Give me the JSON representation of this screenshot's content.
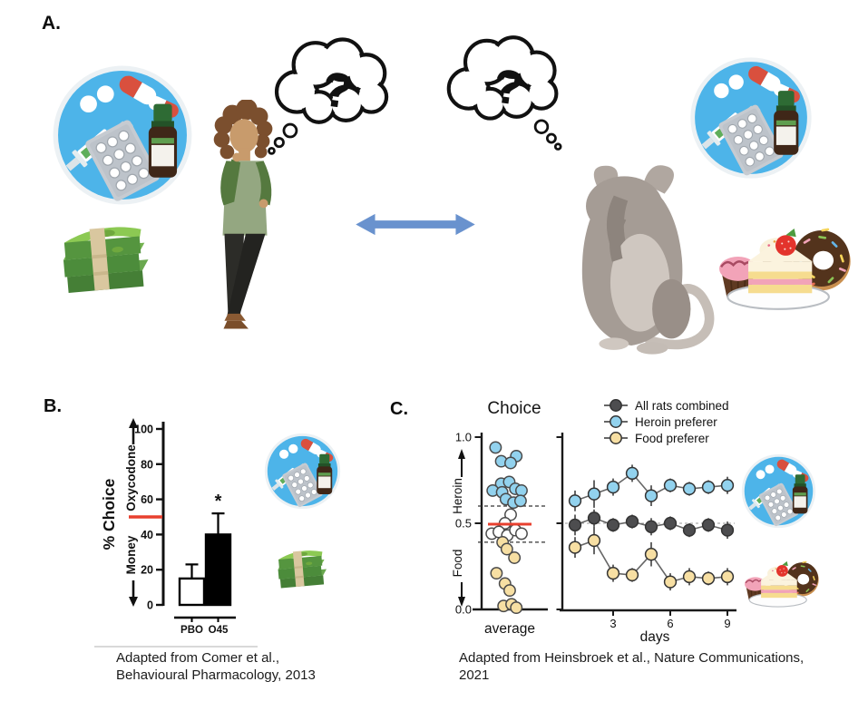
{
  "panels": {
    "a": {
      "label": "A.",
      "thought_symbol": "?"
    },
    "b": {
      "label": "B.",
      "caption_line1": "Adapted from Comer et al.,",
      "caption_line2": "Behavioural Pharmacology, 2013"
    },
    "c": {
      "label": "C.",
      "caption_line1": "Adapted from Heinsbroek et al., Nature Communications,",
      "caption_line2": "2021"
    }
  },
  "icons": {
    "drugs": "blue circle with pills, capsules, syringe, blister pack and medicine bottle",
    "money": "stack of green banknotes with band",
    "sweets": "cupcakes, chocolate donut and cake slice on plate",
    "person": "person thinking with hand on chin",
    "rat": "rat standing on hind legs",
    "thought-bubble": "cloud thought bubble with question mark",
    "double-arrow": "blue double-headed horizontal arrow"
  },
  "colors": {
    "drug_circle_blue": "#4DB4E9",
    "arrow_blue": "#6992CE",
    "reference_red": "#E8402F",
    "heroin_point": "#92D2EE",
    "food_point": "#F7DFA3",
    "all_rats_point": "#4D4D4F"
  },
  "chart_data": [
    {
      "id": "panel_b",
      "type": "bar",
      "title": "",
      "categories": [
        "PBO",
        "O45"
      ],
      "values": [
        15,
        40
      ],
      "errors_up": [
        8,
        12
      ],
      "significance": [
        "",
        "*"
      ],
      "bar_colors": [
        "#FFFFFF",
        "#000000"
      ],
      "ylabel": "% Choice",
      "axis_upper_label": "Oxycodone",
      "axis_lower_label": "Money",
      "yticks": [
        0,
        20,
        40,
        60,
        80,
        100
      ],
      "ylim": [
        0,
        100
      ],
      "reference_line": 50,
      "reference_color": "#E8402F"
    },
    {
      "id": "panel_c_scatter",
      "type": "scatter",
      "title": "Choice",
      "xlabel": "average",
      "ylim": [
        0,
        1
      ],
      "yticks": [
        1.0,
        0.5,
        0.0
      ],
      "axis_upper_label": "Heroin",
      "axis_lower_label": "Food",
      "reference_line": 0.5,
      "dashed_lines": [
        0.6,
        0.39
      ],
      "points": [
        {
          "x": 0.18,
          "y": 0.94,
          "g": "heroin"
        },
        {
          "x": 0.3,
          "y": 0.86,
          "g": "heroin"
        },
        {
          "x": 0.62,
          "y": 0.89,
          "g": "heroin"
        },
        {
          "x": 0.5,
          "y": 0.85,
          "g": "heroin"
        },
        {
          "x": 0.3,
          "y": 0.73,
          "g": "heroin"
        },
        {
          "x": 0.47,
          "y": 0.74,
          "g": "heroin"
        },
        {
          "x": 0.12,
          "y": 0.69,
          "g": "heroin"
        },
        {
          "x": 0.32,
          "y": 0.68,
          "g": "heroin"
        },
        {
          "x": 0.6,
          "y": 0.7,
          "g": "heroin"
        },
        {
          "x": 0.73,
          "y": 0.69,
          "g": "heroin"
        },
        {
          "x": 0.4,
          "y": 0.64,
          "g": "heroin"
        },
        {
          "x": 0.56,
          "y": 0.62,
          "g": "heroin"
        },
        {
          "x": 0.71,
          "y": 0.63,
          "g": "heroin"
        },
        {
          "x": 0.5,
          "y": 0.55,
          "g": "mid"
        },
        {
          "x": 0.38,
          "y": 0.5,
          "g": "mid"
        },
        {
          "x": 0.1,
          "y": 0.44,
          "g": "mid"
        },
        {
          "x": 0.25,
          "y": 0.45,
          "g": "mid"
        },
        {
          "x": 0.43,
          "y": 0.43,
          "g": "mid"
        },
        {
          "x": 0.6,
          "y": 0.46,
          "g": "mid"
        },
        {
          "x": 0.73,
          "y": 0.44,
          "g": "mid"
        },
        {
          "x": 0.33,
          "y": 0.39,
          "g": "food"
        },
        {
          "x": 0.42,
          "y": 0.35,
          "g": "food"
        },
        {
          "x": 0.58,
          "y": 0.3,
          "g": "food"
        },
        {
          "x": 0.2,
          "y": 0.21,
          "g": "food"
        },
        {
          "x": 0.38,
          "y": 0.15,
          "g": "food"
        },
        {
          "x": 0.48,
          "y": 0.11,
          "g": "food"
        },
        {
          "x": 0.35,
          "y": 0.02,
          "g": "food"
        },
        {
          "x": 0.52,
          "y": 0.03,
          "g": "food"
        },
        {
          "x": 0.62,
          "y": 0.01,
          "g": "food"
        }
      ]
    },
    {
      "id": "panel_c_lines",
      "type": "line",
      "xlabel": "days",
      "x": [
        1,
        2,
        3,
        4,
        5,
        6,
        7,
        8,
        9
      ],
      "xticks": [
        3,
        6,
        9
      ],
      "ylim": [
        0,
        1
      ],
      "dashed_line": 0.5,
      "series": [
        {
          "name": "All rats combined",
          "color": "#4D4D4F",
          "values": [
            0.49,
            0.53,
            0.49,
            0.51,
            0.48,
            0.5,
            0.46,
            0.49,
            0.46
          ],
          "errors": [
            0.06,
            0.05,
            0.04,
            0.04,
            0.05,
            0.04,
            0.04,
            0.04,
            0.05
          ]
        },
        {
          "name": "Heroin preferer",
          "color": "#92D2EE",
          "values": [
            0.63,
            0.67,
            0.71,
            0.79,
            0.66,
            0.72,
            0.7,
            0.71,
            0.72
          ],
          "errors": [
            0.06,
            0.08,
            0.05,
            0.05,
            0.06,
            0.04,
            0.04,
            0.04,
            0.05
          ]
        },
        {
          "name": "Food preferer",
          "color": "#F7DFA3",
          "values": [
            0.36,
            0.4,
            0.21,
            0.2,
            0.32,
            0.16,
            0.19,
            0.18,
            0.19
          ],
          "errors": [
            0.06,
            0.08,
            0.05,
            0.04,
            0.07,
            0.05,
            0.05,
            0.04,
            0.05
          ]
        }
      ]
    }
  ]
}
